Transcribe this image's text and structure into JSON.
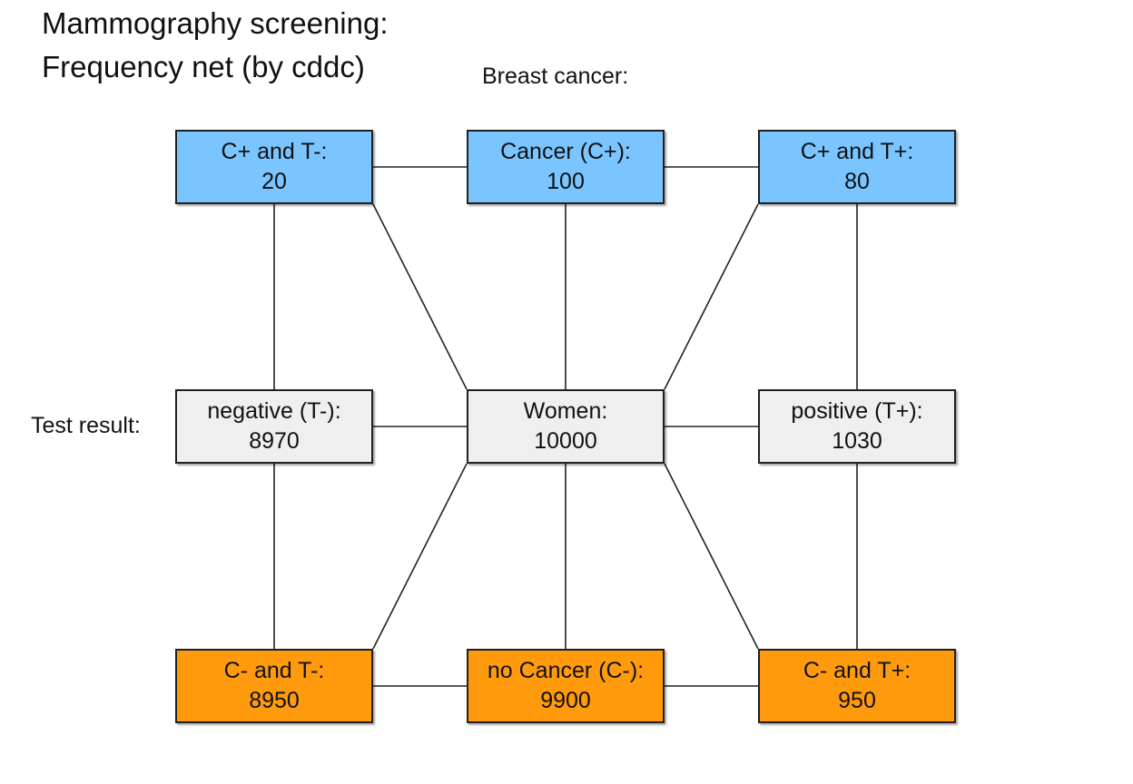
{
  "title": {
    "line1": "Mammography screening:",
    "line2": "Frequency net (by cddc)"
  },
  "labels": {
    "breast_cancer": "Breast cancer:",
    "test_result": "Test result:"
  },
  "colors": {
    "cancer_row": "#7ac5ff",
    "test_row": "#efefef",
    "no_cancer_row": "#ff9a0d",
    "border": "#202020"
  },
  "nodes": {
    "c_pos_t_neg": {
      "label": "C+ and T-:",
      "value": "20"
    },
    "cancer": {
      "label": "Cancer (C+):",
      "value": "100"
    },
    "c_pos_t_pos": {
      "label": "C+ and T+:",
      "value": "80"
    },
    "negative": {
      "label": "negative (T-):",
      "value": "8970"
    },
    "women": {
      "label": "Women:",
      "value": "10000"
    },
    "positive": {
      "label": "positive (T+):",
      "value": "1030"
    },
    "c_neg_t_neg": {
      "label": "C- and T-:",
      "value": "8950"
    },
    "no_cancer": {
      "label": "no Cancer (C-):",
      "value": "9900"
    },
    "c_neg_t_pos": {
      "label": "C- and T+:",
      "value": "950"
    }
  }
}
